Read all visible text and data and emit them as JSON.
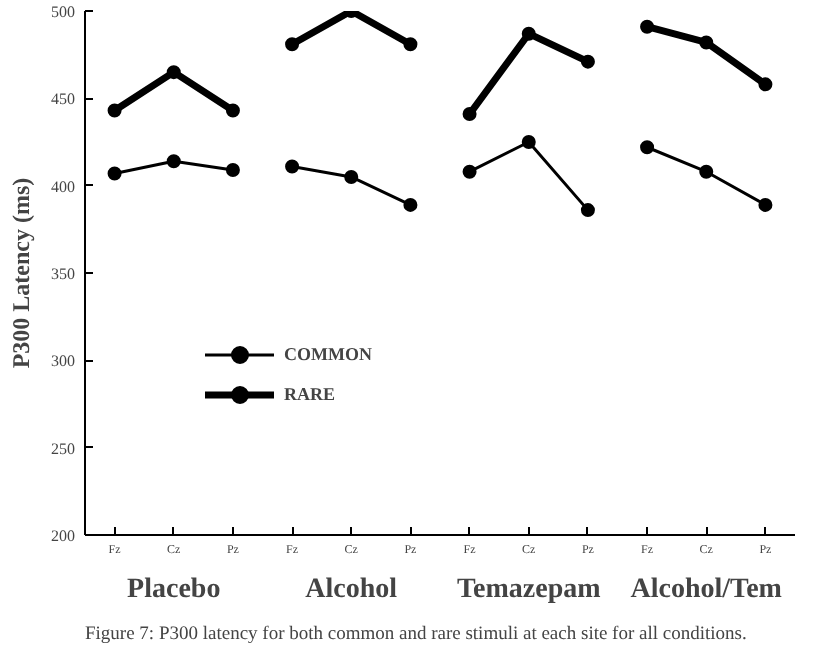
{
  "chart_data": {
    "type": "line",
    "ylabel": "P300 Latency (ms)",
    "categories": [
      "Fz",
      "Cz",
      "Pz",
      "Fz",
      "Cz",
      "Pz",
      "Fz",
      "Cz",
      "Pz",
      "Fz",
      "Cz",
      "Pz"
    ],
    "series": [
      {
        "name": "COMMON",
        "color": "#000000",
        "values": [
          407,
          414,
          409,
          411,
          405,
          389,
          408,
          425,
          386,
          422,
          408,
          389
        ]
      },
      {
        "name": "RARE",
        "color": "#000000",
        "values": [
          443,
          465,
          443,
          481,
          500,
          481,
          441,
          487,
          471,
          491,
          482,
          458
        ]
      }
    ],
    "ylim": [
      200,
      500
    ],
    "yticks": [
      200,
      250,
      300,
      350,
      400,
      450,
      500
    ],
    "grid": false,
    "legend": "bottom left",
    "marker": "circle",
    "line_style": "solid",
    "annotations": [
      "Placebo",
      "Alcohol",
      "Temazepam",
      "Alcohol/Tem",
      "Figure 7: P300 latency for both common and rare stimuli at each site for all conditions."
    ]
  }
}
